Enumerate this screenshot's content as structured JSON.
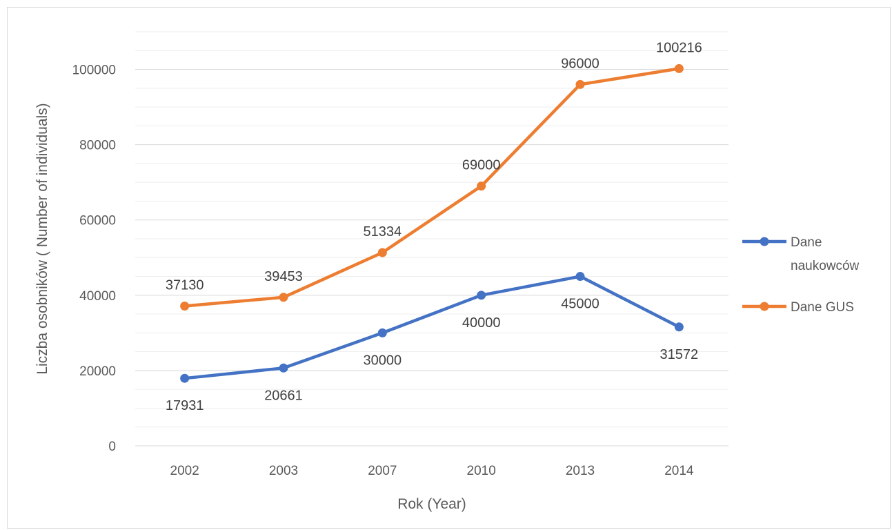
{
  "chart_data": {
    "type": "line",
    "title": "",
    "xlabel": "Rok (Year)",
    "ylabel": "Liczba osobników ( Number of individuals)",
    "categories": [
      "2002",
      "2003",
      "2007",
      "2010",
      "2013",
      "2014"
    ],
    "ylim": [
      0,
      100000
    ],
    "yticks": [
      0,
      20000,
      40000,
      60000,
      80000,
      100000
    ],
    "ytick_labels": [
      "0",
      "20000",
      "40000",
      "60000",
      "80000",
      "100000"
    ],
    "grid": true,
    "legend_position": "right",
    "series": [
      {
        "name": "Dane naukowców",
        "legend_lines": [
          "Dane",
          "naukowców"
        ],
        "color": "#4472c4",
        "values": [
          17931,
          20661,
          30000,
          40000,
          45000,
          31572
        ],
        "labels": [
          "17931",
          "20661",
          "30000",
          "40000",
          "45000",
          "31572"
        ],
        "label_position": "below"
      },
      {
        "name": "Dane GUS",
        "legend_lines": [
          "Dane GUS"
        ],
        "color": "#ed7d31",
        "values": [
          37130,
          39453,
          51334,
          69000,
          96000,
          100216
        ],
        "labels": [
          "37130",
          "39453",
          "51334",
          "69000",
          "96000",
          "100216"
        ],
        "label_position": "above"
      }
    ]
  }
}
